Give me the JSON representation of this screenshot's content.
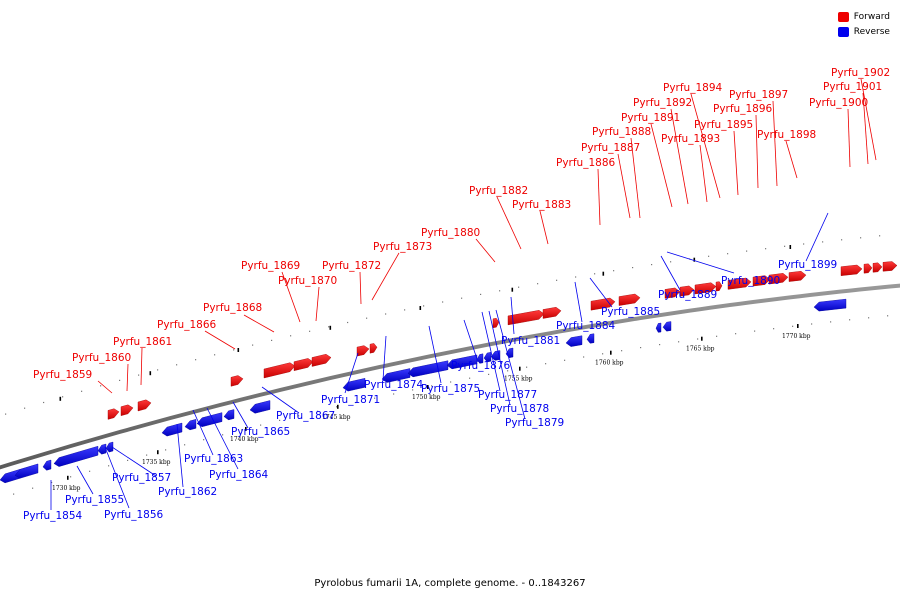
{
  "caption": "Pyrolobus fumarii 1A, complete genome. - 0..1843267",
  "legend": [
    {
      "name": "Forward",
      "color": "#ee0000"
    },
    {
      "name": "Reverse",
      "color": "#0000ee"
    }
  ],
  "colors": {
    "forward": "#ee0000",
    "reverse": "#0000ee",
    "backbone": "#888888"
  },
  "ticks": [
    "1730 kbp",
    "1735 kbp",
    "1740 kbp",
    "1745 kbp",
    "1750 kbp",
    "1755 kbp",
    "1760 kbp",
    "1765 kbp",
    "1770 kbp"
  ],
  "forward_genes": [
    "Pyrfu_1859",
    "Pyrfu_1860",
    "Pyrfu_1861",
    "Pyrfu_1866",
    "Pyrfu_1868",
    "Pyrfu_1869",
    "Pyrfu_1870",
    "Pyrfu_1872",
    "Pyrfu_1873",
    "Pyrfu_1880",
    "Pyrfu_1882",
    "Pyrfu_1883",
    "Pyrfu_1886",
    "Pyrfu_1887",
    "Pyrfu_1888",
    "Pyrfu_1891",
    "Pyrfu_1892",
    "Pyrfu_1893",
    "Pyrfu_1894",
    "Pyrfu_1895",
    "Pyrfu_1896",
    "Pyrfu_1897",
    "Pyrfu_1898",
    "Pyrfu_1900",
    "Pyrfu_1901",
    "Pyrfu_1902"
  ],
  "reverse_genes": [
    "Pyrfu_1854",
    "Pyrfu_1855",
    "Pyrfu_1856",
    "Pyrfu_1857",
    "Pyrfu_1862",
    "Pyrfu_1863",
    "Pyrfu_1864",
    "Pyrfu_1865",
    "Pyrfu_1867",
    "Pyrfu_1871",
    "Pyrfu_1874",
    "Pyrfu_1875",
    "Pyrfu_1876",
    "Pyrfu_1877",
    "Pyrfu_1878",
    "Pyrfu_1879",
    "Pyrfu_1881",
    "Pyrfu_1884",
    "Pyrfu_1885",
    "Pyrfu_1889",
    "Pyrfu_1890",
    "Pyrfu_1899"
  ]
}
